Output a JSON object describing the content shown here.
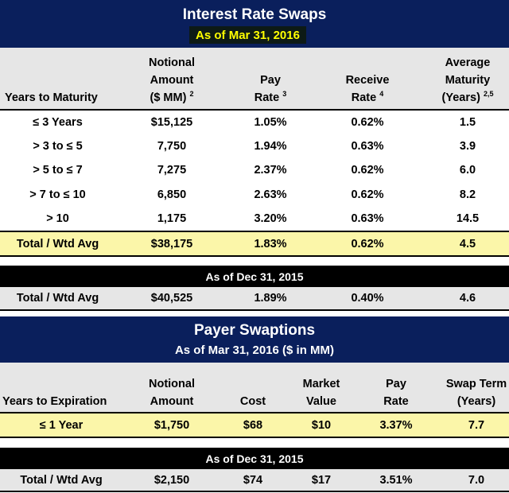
{
  "swaps": {
    "title": "Interest Rate Swaps",
    "as_of": "As of Mar 31, 2016",
    "headers": {
      "years": "Years to Maturity",
      "notional_l1": "Notional",
      "notional_l2": "Amount",
      "notional_l3": "($ MM)",
      "notional_sup": "2",
      "pay_l1": "Pay",
      "pay_l2": "Rate",
      "pay_sup": "3",
      "receive_l1": "Receive",
      "receive_l2": "Rate",
      "receive_sup": "4",
      "avg_l1": "Average",
      "avg_l2": "Maturity",
      "avg_l3": "(Years)",
      "avg_sup": "2,5"
    },
    "rows": [
      {
        "term": "≤ 3 Years",
        "notional": "$15,125",
        "pay": "1.05%",
        "receive": "0.62%",
        "maturity": "1.5"
      },
      {
        "term": "> 3 to ≤ 5",
        "notional": "7,750",
        "pay": "1.94%",
        "receive": "0.63%",
        "maturity": "3.9"
      },
      {
        "term": "> 5 to ≤ 7",
        "notional": "7,275",
        "pay": "2.37%",
        "receive": "0.62%",
        "maturity": "6.0"
      },
      {
        "term": "> 7 to ≤ 10",
        "notional": "6,850",
        "pay": "2.63%",
        "receive": "0.62%",
        "maturity": "8.2"
      },
      {
        "term": "> 10",
        "notional": "1,175",
        "pay": "3.20%",
        "receive": "0.63%",
        "maturity": "14.5"
      }
    ],
    "total": {
      "term": "Total / Wtd Avg",
      "notional": "$38,175",
      "pay": "1.83%",
      "receive": "0.62%",
      "maturity": "4.5"
    },
    "prior_as_of": "As of Dec 31, 2015",
    "prior_total": {
      "term": "Total / Wtd Avg",
      "notional": "$40,525",
      "pay": "1.89%",
      "receive": "0.40%",
      "maturity": "4.6"
    }
  },
  "swaptions": {
    "title": "Payer Swaptions",
    "as_of": "As of Mar 31, 2016 ($ in MM)",
    "headers": {
      "years": "Years to Expiration",
      "notional_l1": "Notional",
      "notional_l2": "Amount",
      "cost": "Cost",
      "market_l1": "Market",
      "market_l2": "Value",
      "pay_l1": "Pay",
      "pay_l2": "Rate",
      "term_l1": "Swap Term",
      "term_l2": "(Years)"
    },
    "row": {
      "term": "≤ 1 Year",
      "notional": "$1,750",
      "cost": "$68",
      "market": "$10",
      "pay": "3.37%",
      "swap_term": "7.7"
    },
    "prior_as_of": "As of Dec 31, 2015",
    "prior_total": {
      "term": "Total / Wtd Avg",
      "notional": "$2,150",
      "cost": "$74",
      "market": "$17",
      "pay": "3.51%",
      "swap_term": "7.0"
    }
  },
  "colors": {
    "navy": "#0a1f5c",
    "highlight_yellow": "#fbf6a9",
    "title_yellow": "#ffff00",
    "header_grey": "#e6e6e6"
  }
}
